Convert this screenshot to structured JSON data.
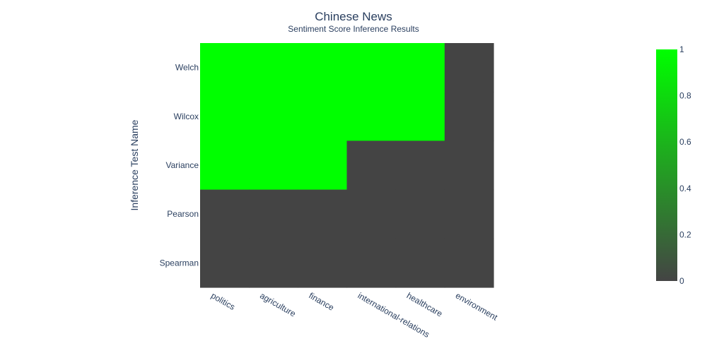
{
  "chart_data": {
    "type": "heatmap",
    "title": "Chinese News",
    "subtitle": "Sentiment Score Inference Results",
    "xlabel": "",
    "ylabel": "Inference Test Name",
    "x": [
      "politics",
      "agriculture",
      "finance",
      "international-relations",
      "healthcare",
      "environment"
    ],
    "y": [
      "Welch",
      "Wilcox",
      "Variance",
      "Pearson",
      "Spearman"
    ],
    "z": [
      [
        1,
        1,
        1,
        1,
        1,
        0
      ],
      [
        1,
        1,
        1,
        1,
        1,
        0
      ],
      [
        1,
        1,
        1,
        0,
        0,
        0
      ],
      [
        0,
        0,
        0,
        0,
        0,
        0
      ],
      [
        0,
        0,
        0,
        0,
        0,
        0
      ]
    ],
    "zmin": 0,
    "zmax": 1,
    "colorscale": {
      "low": "#444444",
      "high": "#00ff00"
    },
    "colorbar_ticks": [
      "0",
      "0.2",
      "0.4",
      "0.6",
      "0.8",
      "1"
    ]
  }
}
